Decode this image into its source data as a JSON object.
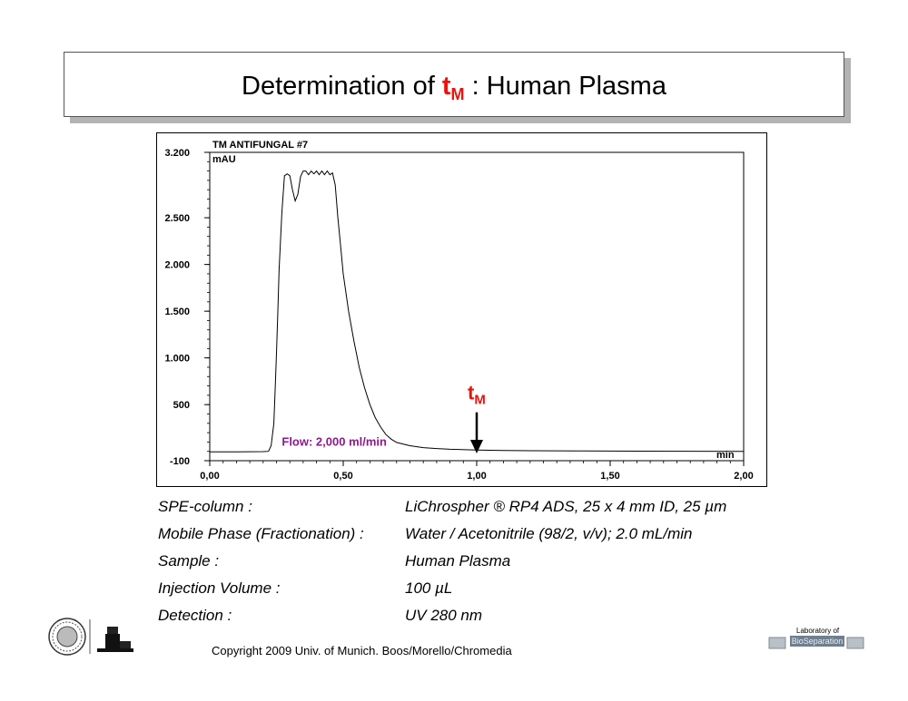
{
  "title": {
    "prefix": "Determination of",
    "symbol": "t",
    "subscript": "M",
    "suffix": ":  Human Plasma"
  },
  "chart_data": {
    "type": "line",
    "run_label": "TM  ANTIFUNGAL #7",
    "y_unit": "mAU",
    "x_unit": "min",
    "xlim": [
      0,
      2.0
    ],
    "ylim": [
      -100,
      3200
    ],
    "x_ticks": [
      {
        "value": 0.0,
        "label": "0,00"
      },
      {
        "value": 0.5,
        "label": "0,50"
      },
      {
        "value": 1.0,
        "label": "1,00"
      },
      {
        "value": 1.5,
        "label": "1,50"
      },
      {
        "value": 2.0,
        "label": "2,00"
      }
    ],
    "y_ticks": [
      {
        "value": -100,
        "label": "-100"
      },
      {
        "value": 500,
        "label": "500"
      },
      {
        "value": 1000,
        "label": "1.000"
      },
      {
        "value": 1500,
        "label": "1.500"
      },
      {
        "value": 2000,
        "label": "2.000"
      },
      {
        "value": 2500,
        "label": "2.500"
      },
      {
        "value": 3200,
        "label": "3.200"
      }
    ],
    "series": [
      {
        "x": [
          0,
          0.1,
          0.2,
          0.22,
          0.23,
          0.24,
          0.245,
          0.25,
          0.255,
          0.26,
          0.27,
          0.28,
          0.29,
          0.3,
          0.31,
          0.32,
          0.33,
          0.34,
          0.35,
          0.36,
          0.37,
          0.38,
          0.39,
          0.4,
          0.41,
          0.42,
          0.43,
          0.44,
          0.45,
          0.46,
          0.47,
          0.48,
          0.49,
          0.5,
          0.52,
          0.54,
          0.56,
          0.58,
          0.6,
          0.62,
          0.64,
          0.66,
          0.68,
          0.7,
          0.75,
          0.8,
          0.85,
          0.9,
          1.0,
          1.1,
          1.2,
          1.4,
          1.6,
          1.8,
          2.0
        ],
        "y": [
          -5,
          -5,
          -3,
          0,
          60,
          300,
          650,
          1050,
          1500,
          1950,
          2550,
          2950,
          2970,
          2950,
          2800,
          2680,
          2750,
          2940,
          3000,
          3000,
          2960,
          3000,
          2970,
          3000,
          2960,
          3000,
          2960,
          3000,
          2960,
          2980,
          2850,
          2500,
          2200,
          1900,
          1500,
          1180,
          900,
          680,
          500,
          360,
          260,
          180,
          130,
          95,
          60,
          40,
          30,
          22,
          15,
          10,
          7,
          4,
          2,
          1,
          0
        ]
      }
    ],
    "annotations": {
      "flow": "Flow: 2,000 ml/min",
      "marker_symbol": "t",
      "marker_sub": "M",
      "marker_x": 1.0
    }
  },
  "details": [
    {
      "label": "SPE-column :",
      "value": "LiChrospher ® RP4 ADS,  25 x 4 mm ID, 25 µm"
    },
    {
      "label": "Mobile Phase  (Fractionation) :",
      "value": "Water  /  Acetonitrile  (98/2, v/v); 2.0 mL/min"
    },
    {
      "label": "Sample :",
      "value": "Human Plasma"
    },
    {
      "label": "Injection Volume :",
      "value": "100 µL"
    },
    {
      "label": "Detection :",
      "value": "UV 280 nm"
    }
  ],
  "footer": {
    "copyright": "Copyright 2009 Univ. of Munich. Boos/Morello/Chromedia",
    "lab_top": "Laboratory of",
    "lab_name": "BioSeparation"
  },
  "colors": {
    "accent_red": "#e8140c",
    "flow_purple": "#8b1a8b",
    "shadow": "#b3b3b3"
  }
}
